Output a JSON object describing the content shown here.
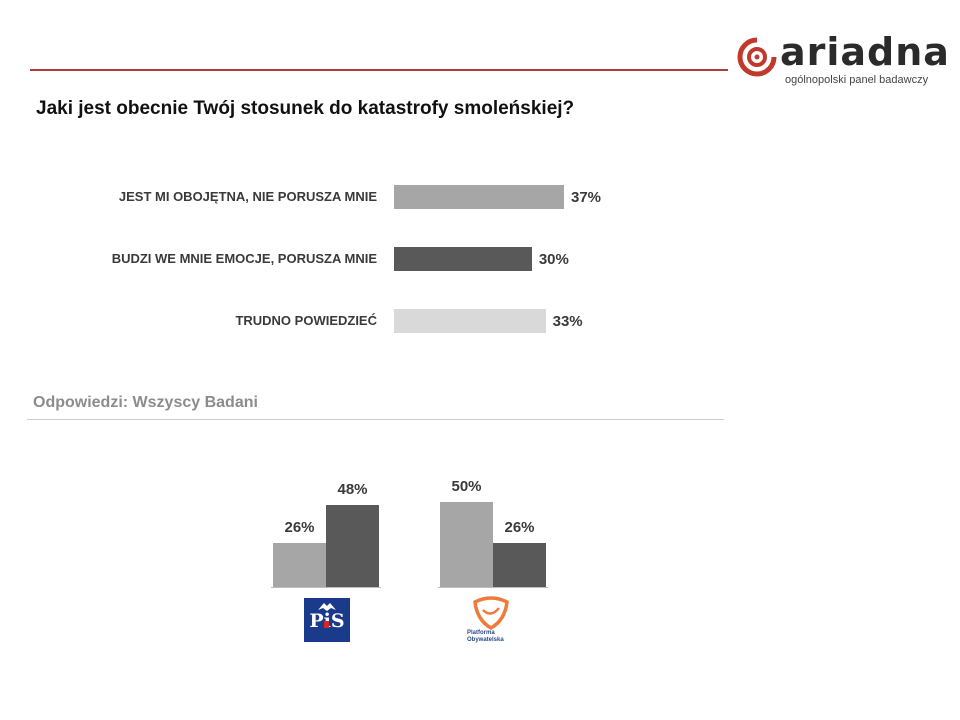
{
  "brand": {
    "name": "ariadna",
    "tagline": "ogólnopolski panel badawczy",
    "accent_color": "#c0392b"
  },
  "question": "Jaki jest obecnie Twój stosunek do katastrofy smoleńskiej?",
  "respondents_label": "Odpowiedzi: Wszyscy Badani",
  "chart_data": [
    {
      "type": "bar",
      "orientation": "horizontal",
      "categories": [
        "JEST MI OBOJĘTNA, NIE PORUSZA MNIE",
        "BUDZI WE MNIE EMOCJE, PORUSZA MNIE",
        "TRUDNO POWIEDZIEĆ"
      ],
      "values": [
        37,
        30,
        33
      ],
      "value_labels": [
        "37%",
        "30%",
        "33%"
      ],
      "colors": [
        "#a6a6a6",
        "#595959",
        "#d9d9d9"
      ],
      "xlim": [
        0,
        100
      ]
    },
    {
      "type": "bar",
      "orientation": "vertical",
      "groups": [
        "PiS",
        "Platforma Obywatelska"
      ],
      "series": [
        {
          "values": [
            26,
            50
          ],
          "labels": [
            "26%",
            "50%"
          ],
          "color": "#a6a6a6"
        },
        {
          "values": [
            48,
            26
          ],
          "labels": [
            "48%",
            "26%"
          ],
          "color": "#595959"
        }
      ],
      "ylim": [
        0,
        100
      ]
    }
  ],
  "party_logos": {
    "pis": {
      "text": "PiS",
      "color": "#1a3a8c",
      "icon": "eagle-icon"
    },
    "po": {
      "line1": "Platforma",
      "line2": "Obywatelska",
      "color": "#f07a3a",
      "icon": "shield-icon"
    }
  }
}
